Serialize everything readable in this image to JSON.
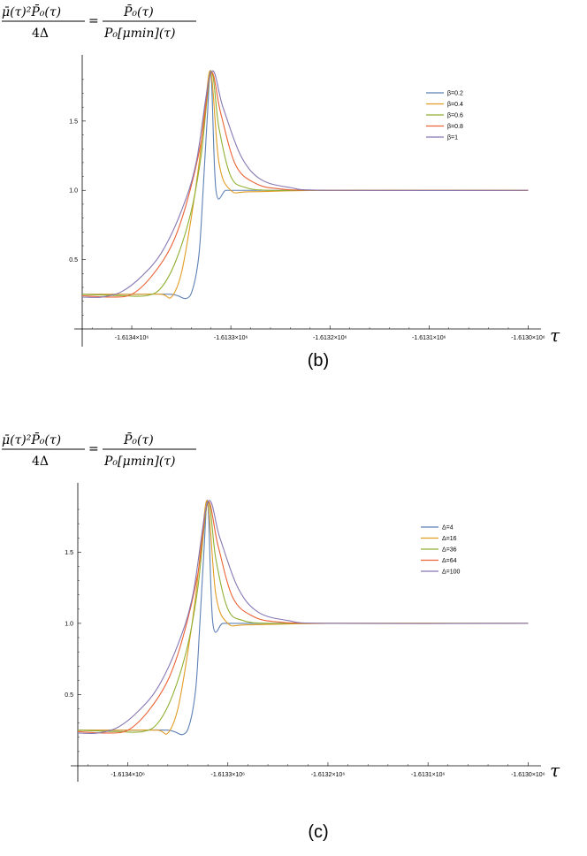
{
  "panels": [
    {
      "label": "(b)",
      "formula": {
        "lhs_num": "μ̄(τ)²P̄₀(τ)",
        "lhs_den": "4Δ",
        "rhs_num": "P̄₀(τ)",
        "rhs_den": "P₀[μmin](τ)"
      },
      "x_axis_label": "τ",
      "x_tick_labels": [
        "-1.6134×10⁶",
        "-1.6133×10⁶",
        "-1.6132×10⁶",
        "-1.6131×10⁶",
        "-1.6130×10⁶"
      ],
      "y_tick_labels": [
        "0.5",
        "1.0",
        "1.5"
      ],
      "legend": [
        "β=0.2",
        "β=0.4",
        "β=0.6",
        "β=0.8",
        "β=1"
      ]
    },
    {
      "label": "(c)",
      "formula": {
        "lhs_num": "μ̄(τ)²P̄₀(τ)",
        "lhs_den": "4Δ",
        "rhs_num": "P̄₀(τ)",
        "rhs_den": "P₀[μmin](τ)"
      },
      "x_axis_label": "τ",
      "x_tick_labels": [
        "-1.6134×10⁶",
        "-1.6133×10⁶",
        "-1.6132×10⁶",
        "-1.6131×10⁶",
        "-1.6130×10⁶"
      ],
      "y_tick_labels": [
        "0.5",
        "1.0",
        "1.5"
      ],
      "legend": [
        "Δ=4",
        "Δ=16",
        "Δ=36",
        "Δ=64",
        "Δ=100"
      ]
    }
  ],
  "colors": [
    "#5e81b5",
    "#e19c24",
    "#8fb032",
    "#eb6235",
    "#8778b3"
  ],
  "chart_data": [
    {
      "type": "line",
      "xlim": [
        -1613450,
        -1612995
      ],
      "ylim": [
        0.0,
        1.85
      ],
      "x_ticks": [
        -1613400,
        -1613300,
        -1613200,
        -1613100,
        -1613000
      ],
      "y_ticks": [
        0.5,
        1.0,
        1.5
      ],
      "legend_position": "top-right",
      "series": [
        {
          "name": "β=0.2",
          "x": [
            -1613450,
            -1613400,
            -1613360,
            -1613345,
            -1613338,
            -1613332,
            -1613328,
            -1613324,
            -1613320,
            -1613315,
            -1613305,
            -1613290,
            -1613200,
            -1613000
          ],
          "y": [
            0.25,
            0.25,
            0.25,
            0.22,
            0.3,
            0.55,
            1.0,
            1.5,
            1.85,
            1.0,
            1.0,
            1.0,
            1.0,
            1.0
          ]
        },
        {
          "name": "β=0.4",
          "x": [
            -1613450,
            -1613400,
            -1613370,
            -1613360,
            -1613350,
            -1613340,
            -1613332,
            -1613326,
            -1613320,
            -1613312,
            -1613300,
            -1613280,
            -1613200,
            -1613000
          ],
          "y": [
            0.25,
            0.25,
            0.25,
            0.23,
            0.4,
            0.8,
            1.2,
            1.6,
            1.85,
            1.2,
            1.0,
            0.99,
            1.0,
            1.0
          ]
        },
        {
          "name": "β=0.6",
          "x": [
            -1613450,
            -1613410,
            -1613385,
            -1613370,
            -1613355,
            -1613340,
            -1613330,
            -1613320,
            -1613312,
            -1613300,
            -1613285,
            -1613260,
            -1613200,
            -1613000
          ],
          "y": [
            0.25,
            0.24,
            0.24,
            0.3,
            0.5,
            0.85,
            1.25,
            1.85,
            1.45,
            1.1,
            1.02,
            1.0,
            1.0,
            1.0
          ]
        },
        {
          "name": "β=0.8",
          "x": [
            -1613450,
            -1613420,
            -1613400,
            -1613380,
            -1613360,
            -1613345,
            -1613330,
            -1613320,
            -1613310,
            -1613295,
            -1613275,
            -1613250,
            -1613200,
            -1613000
          ],
          "y": [
            0.24,
            0.23,
            0.25,
            0.38,
            0.6,
            0.9,
            1.35,
            1.85,
            1.55,
            1.18,
            1.05,
            1.01,
            1.0,
            1.0
          ]
        },
        {
          "name": "β=1",
          "x": [
            -1613450,
            -1613430,
            -1613410,
            -1613390,
            -1613370,
            -1613350,
            -1613335,
            -1613320,
            -1613308,
            -1613290,
            -1613270,
            -1613240,
            -1613200,
            -1613000
          ],
          "y": [
            0.23,
            0.23,
            0.27,
            0.38,
            0.55,
            0.85,
            1.2,
            1.85,
            1.6,
            1.25,
            1.08,
            1.02,
            1.0,
            1.0
          ]
        }
      ]
    },
    {
      "type": "line",
      "xlim": [
        -1613450,
        -1612995
      ],
      "ylim": [
        0.0,
        1.85
      ],
      "x_ticks": [
        -1613400,
        -1613300,
        -1613200,
        -1613100,
        -1613000
      ],
      "y_ticks": [
        0.5,
        1.0,
        1.5
      ],
      "legend_position": "top-right",
      "series": [
        {
          "name": "Δ=4",
          "x": [
            -1613450,
            -1613400,
            -1613360,
            -1613345,
            -1613338,
            -1613332,
            -1613328,
            -1613324,
            -1613320,
            -1613315,
            -1613305,
            -1613290,
            -1613200,
            -1613000
          ],
          "y": [
            0.25,
            0.25,
            0.25,
            0.22,
            0.3,
            0.55,
            1.0,
            1.5,
            1.85,
            1.0,
            1.0,
            1.0,
            1.0,
            1.0
          ]
        },
        {
          "name": "Δ=16",
          "x": [
            -1613450,
            -1613400,
            -1613370,
            -1613360,
            -1613350,
            -1613340,
            -1613332,
            -1613326,
            -1613320,
            -1613312,
            -1613300,
            -1613280,
            -1613200,
            -1613000
          ],
          "y": [
            0.25,
            0.25,
            0.25,
            0.23,
            0.4,
            0.8,
            1.2,
            1.6,
            1.85,
            1.2,
            1.0,
            0.99,
            1.0,
            1.0
          ]
        },
        {
          "name": "Δ=36",
          "x": [
            -1613450,
            -1613410,
            -1613385,
            -1613370,
            -1613355,
            -1613340,
            -1613330,
            -1613320,
            -1613312,
            -1613300,
            -1613285,
            -1613260,
            -1613200,
            -1613000
          ],
          "y": [
            0.25,
            0.24,
            0.24,
            0.3,
            0.5,
            0.85,
            1.25,
            1.85,
            1.45,
            1.1,
            1.02,
            1.0,
            1.0,
            1.0
          ]
        },
        {
          "name": "Δ=64",
          "x": [
            -1613450,
            -1613420,
            -1613400,
            -1613380,
            -1613360,
            -1613345,
            -1613330,
            -1613320,
            -1613310,
            -1613295,
            -1613275,
            -1613250,
            -1613200,
            -1613000
          ],
          "y": [
            0.24,
            0.23,
            0.25,
            0.38,
            0.6,
            0.9,
            1.35,
            1.85,
            1.55,
            1.18,
            1.05,
            1.01,
            1.0,
            1.0
          ]
        },
        {
          "name": "Δ=100",
          "x": [
            -1613450,
            -1613430,
            -1613410,
            -1613390,
            -1613370,
            -1613350,
            -1613335,
            -1613320,
            -1613308,
            -1613290,
            -1613270,
            -1613240,
            -1613200,
            -1613000
          ],
          "y": [
            0.23,
            0.23,
            0.27,
            0.38,
            0.55,
            0.85,
            1.2,
            1.85,
            1.6,
            1.25,
            1.08,
            1.02,
            1.0,
            1.0
          ]
        }
      ]
    }
  ]
}
